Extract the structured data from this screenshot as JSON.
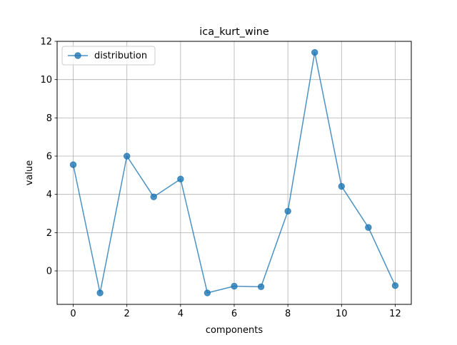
{
  "chart_data": {
    "type": "line",
    "title": "ica_kurt_wine",
    "xlabel": "components",
    "ylabel": "value",
    "xlim": [
      -0.6,
      12.6
    ],
    "ylim": [
      -1.75,
      12.0
    ],
    "xticks": [
      0,
      2,
      4,
      6,
      8,
      10,
      12
    ],
    "yticks": [
      0,
      2,
      4,
      6,
      8,
      10,
      12
    ],
    "grid": true,
    "legend_position": "upper left",
    "series": [
      {
        "name": "distribution",
        "color": "#1f77b4",
        "marker": "circle",
        "x": [
          0,
          1,
          2,
          3,
          4,
          5,
          6,
          7,
          8,
          9,
          10,
          11,
          12
        ],
        "y": [
          5.55,
          -1.15,
          6.0,
          3.87,
          4.8,
          -1.15,
          -0.8,
          -0.83,
          3.12,
          11.42,
          4.42,
          2.27,
          -0.77
        ]
      }
    ]
  }
}
